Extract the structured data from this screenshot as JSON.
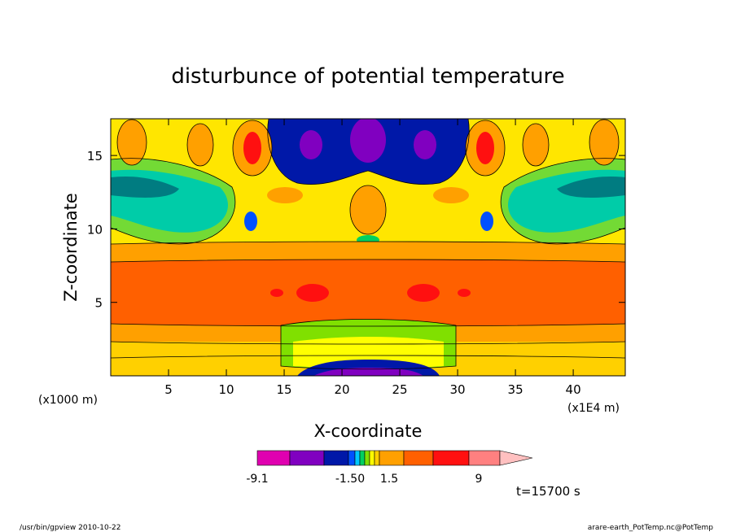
{
  "chart_data": {
    "type": "heatmap",
    "title": "disturbunce of potential temperature",
    "xlabel": "X-coordinate",
    "ylabel": "Z-coordinate",
    "x_unit_left": "(x1000 m)",
    "x_unit_right": "(x1E4 m)",
    "xlim": [
      0,
      44.5
    ],
    "ylim": [
      0,
      17.5
    ],
    "x_ticks": [
      5,
      10,
      15,
      20,
      25,
      30,
      35,
      40
    ],
    "y_ticks": [
      5,
      10,
      15
    ],
    "colorbar": {
      "min_label": "-9.1",
      "labels": [
        "-9.1",
        "-1.50",
        "1.5",
        "9"
      ],
      "colors": [
        "#e000b0",
        "#8000c0",
        "#0018a8",
        "#0050ff",
        "#00c8ff",
        "#00d060",
        "#80e000",
        "#ffff00",
        "#ffd000",
        "#ffa000",
        "#ff6000",
        "#ff1010",
        "#ff8080",
        "#ffc0c0"
      ],
      "tick_values": [
        -9.1,
        -1.5,
        1.5,
        9
      ]
    },
    "annotation_time": "t=15700 s",
    "footer_left": "/usr/bin/gpview   2010-10-22",
    "footer_right": "arare-earth_PotTemp.nc@PotTemp"
  }
}
